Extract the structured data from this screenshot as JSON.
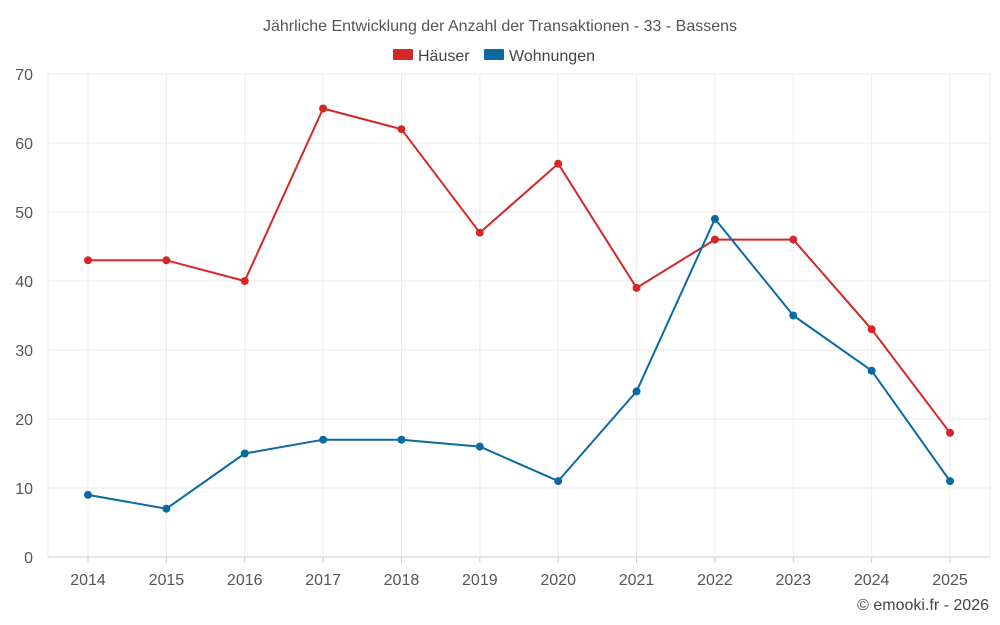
{
  "chart_data": {
    "type": "line",
    "title": "Jährliche Entwicklung der Anzahl der Transaktionen - 33 - Bassens",
    "categories": [
      "2014",
      "2015",
      "2016",
      "2017",
      "2018",
      "2019",
      "2020",
      "2021",
      "2022",
      "2023",
      "2024",
      "2025"
    ],
    "series": [
      {
        "name": "Häuser",
        "color": "#d62728",
        "values": [
          43,
          43,
          40,
          65,
          62,
          47,
          57,
          39,
          46,
          46,
          33,
          18
        ]
      },
      {
        "name": "Wohnungen",
        "color": "#0a6aa1",
        "values": [
          9,
          7,
          15,
          17,
          17,
          16,
          11,
          24,
          49,
          35,
          27,
          11
        ]
      }
    ],
    "ylim": [
      0,
      70
    ],
    "yticks": [
      "0",
      "10",
      "20",
      "30",
      "40",
      "50",
      "60",
      "70"
    ],
    "xlabel": "",
    "ylabel": "",
    "grid": true,
    "legend": "top-center"
  },
  "credit": "© emooki.fr - 2026"
}
